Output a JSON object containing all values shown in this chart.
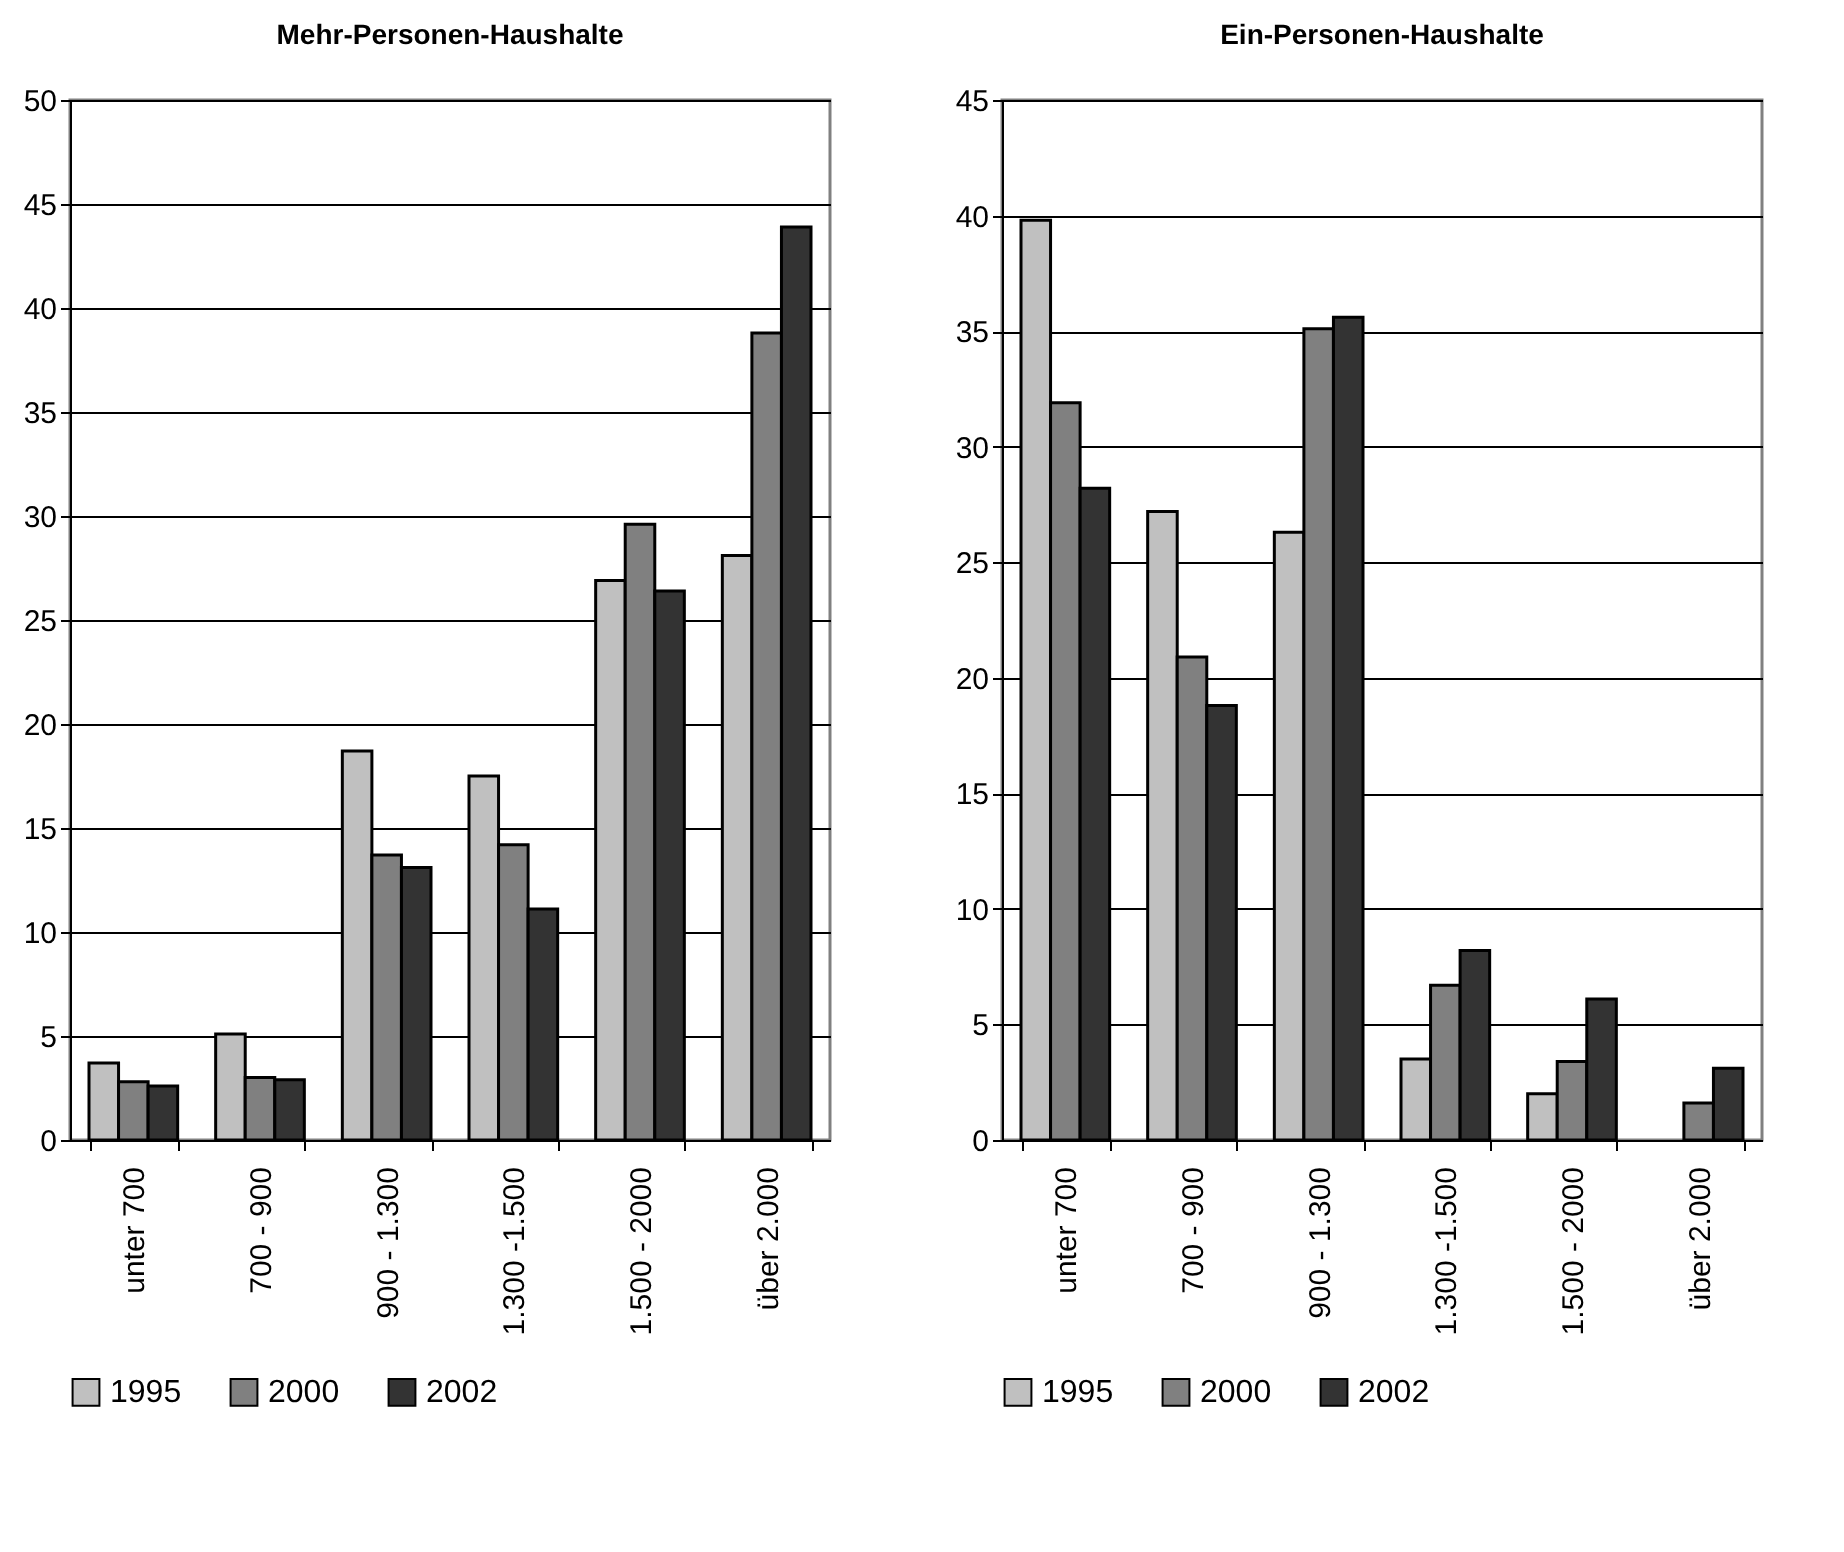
{
  "chart_data": [
    {
      "type": "bar",
      "title": "Mehr-Personen-Haushalte",
      "categories": [
        "unter 700",
        "700 - 900",
        "900 - 1.300",
        "1.300 -1.500",
        "1.500 - 2000",
        "über 2.000"
      ],
      "series": [
        {
          "name": "1995",
          "color": "#c0c0c0",
          "values": [
            3.7,
            5.1,
            18.7,
            17.5,
            26.9,
            28.1
          ]
        },
        {
          "name": "2000",
          "color": "#808080",
          "values": [
            2.8,
            3.0,
            13.7,
            14.2,
            29.6,
            38.8
          ]
        },
        {
          "name": "2002",
          "color": "#333333",
          "values": [
            2.6,
            2.9,
            13.1,
            11.1,
            26.4,
            43.9
          ]
        }
      ],
      "ylim": [
        0,
        50
      ],
      "yticks": [
        0,
        5,
        10,
        15,
        20,
        25,
        30,
        35,
        40,
        45,
        50
      ],
      "grid": "y",
      "legend": "bottom"
    },
    {
      "type": "bar",
      "title": "Ein-Personen-Haushalte",
      "categories": [
        "unter 700",
        "700 - 900",
        "900 - 1.300",
        "1.300 -1.500",
        "1.500 - 2000",
        "über 2.000"
      ],
      "series": [
        {
          "name": "1995",
          "color": "#c0c0c0",
          "values": [
            39.8,
            27.2,
            26.3,
            3.5,
            2.0,
            null
          ]
        },
        {
          "name": "2000",
          "color": "#808080",
          "values": [
            31.9,
            20.9,
            35.1,
            6.7,
            3.4,
            1.6
          ]
        },
        {
          "name": "2002",
          "color": "#333333",
          "values": [
            28.2,
            18.8,
            35.6,
            8.2,
            6.1,
            3.1
          ]
        }
      ],
      "ylim": [
        0,
        45
      ],
      "yticks": [
        0,
        5,
        10,
        15,
        20,
        25,
        30,
        35,
        40,
        45
      ],
      "grid": "y",
      "legend": "bottom"
    }
  ]
}
